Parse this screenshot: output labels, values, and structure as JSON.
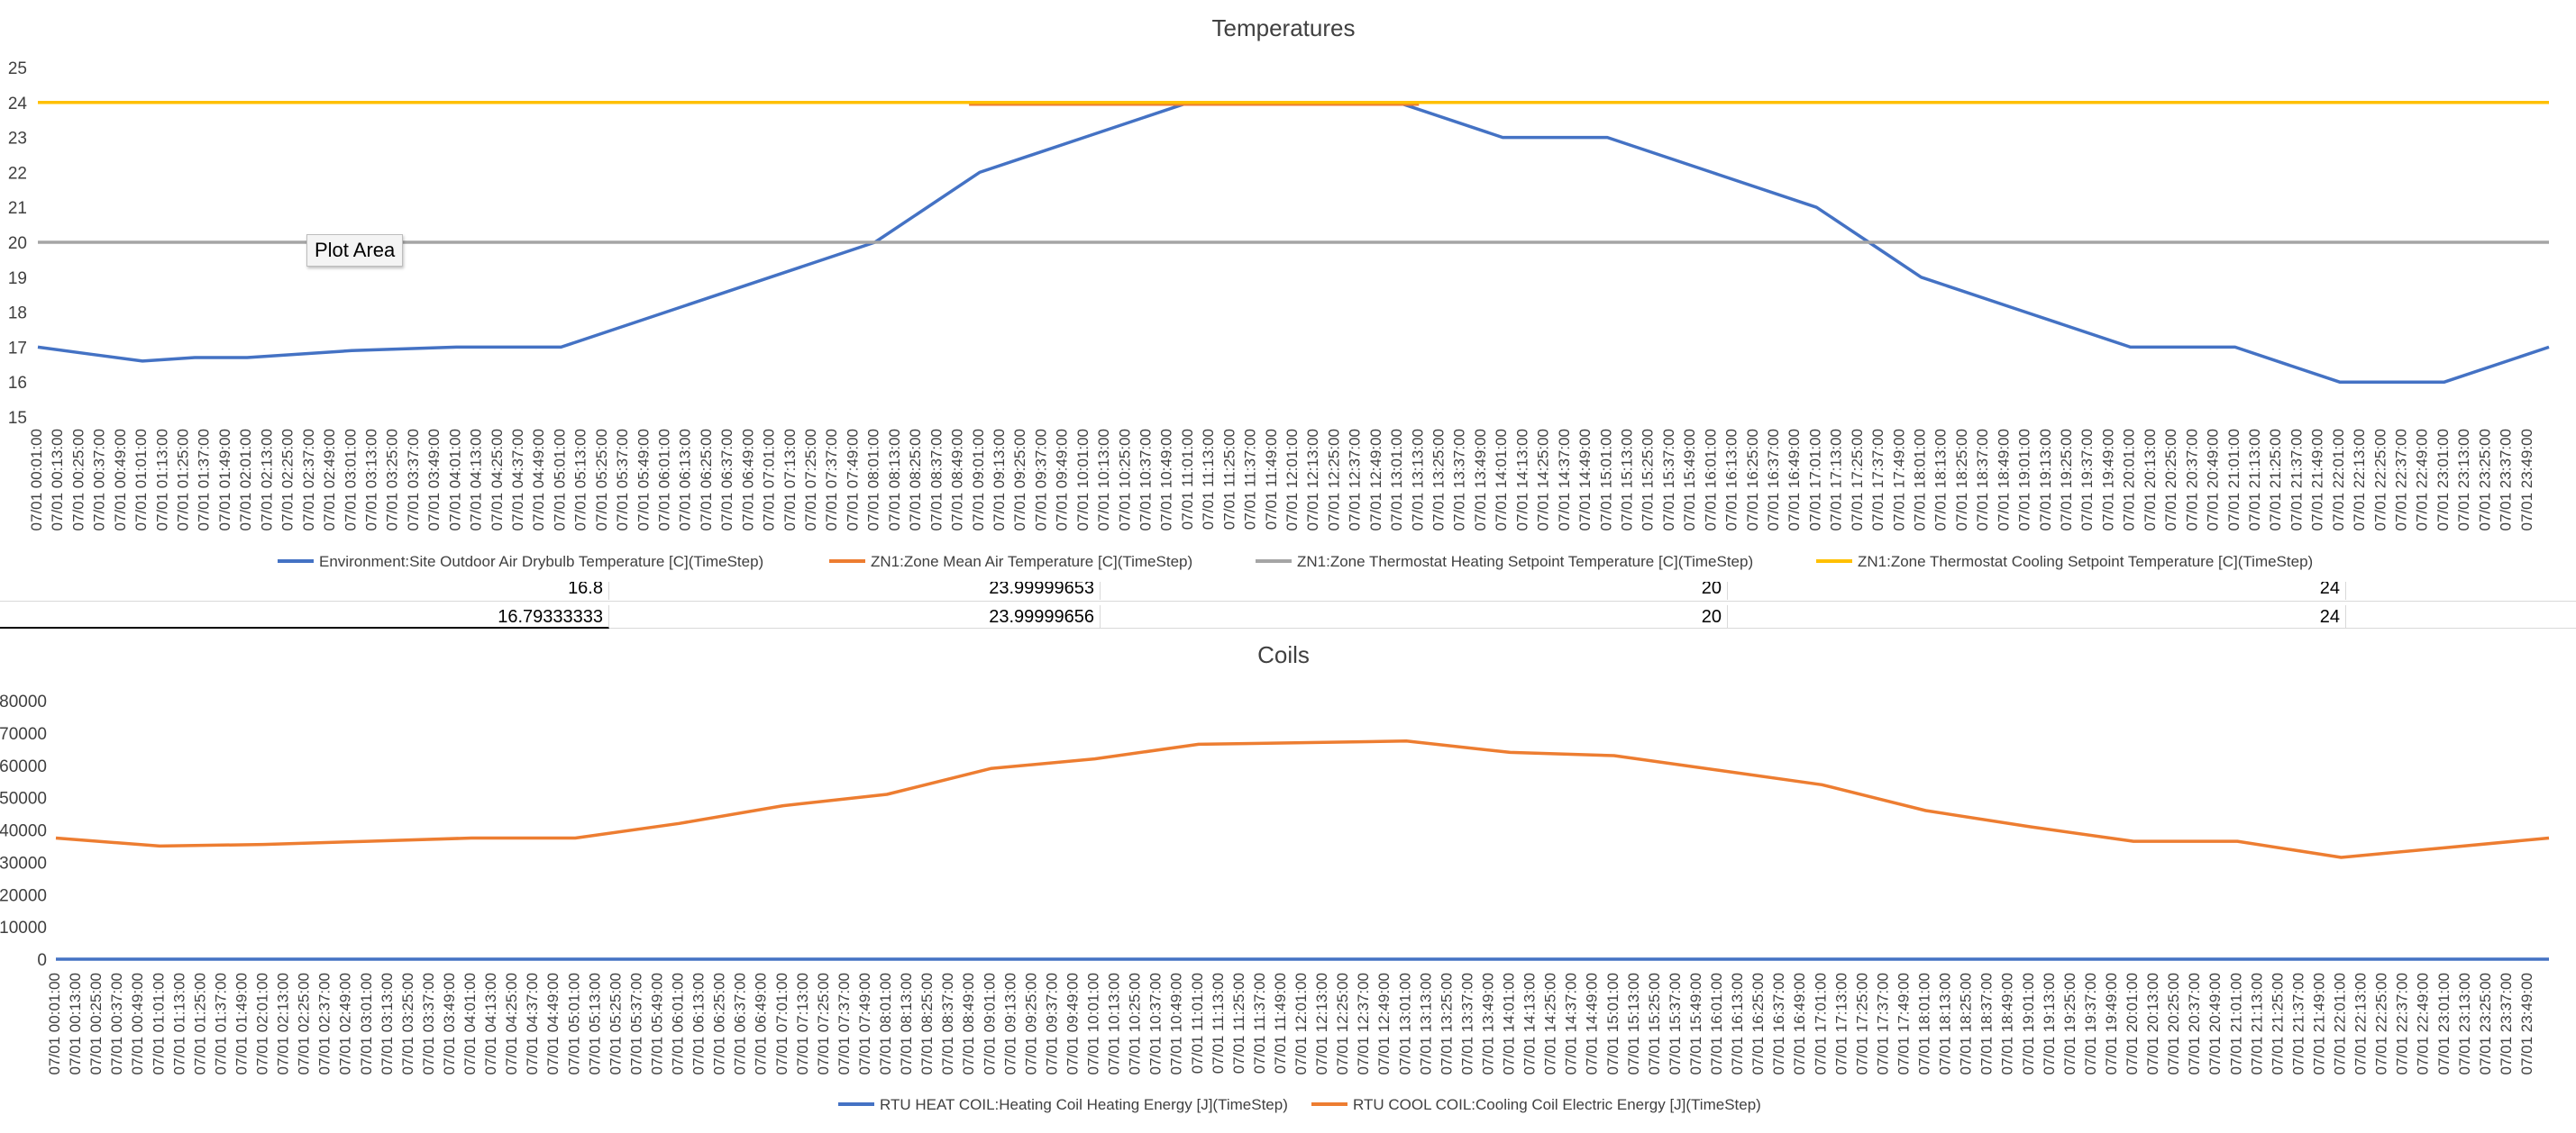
{
  "tooltip": {
    "label": "Plot Area"
  },
  "table_rows": [
    {
      "cells": [
        "16.8",
        "23.99999653",
        "20",
        "24"
      ]
    },
    {
      "cells": [
        "16.79333333",
        "23.99999656",
        "20",
        "24"
      ]
    }
  ],
  "chart_data": [
    {
      "type": "line",
      "title": "Temperatures",
      "ylim": [
        15,
        25
      ],
      "yticks": [
        15,
        16,
        17,
        18,
        19,
        20,
        21,
        22,
        23,
        24,
        25
      ],
      "grid": false,
      "legend_position": "bottom",
      "x_tick_labels_every_12_minutes": "07/01  00:01:00 … 07/01  23:49:00",
      "x_hours": [
        0,
        0.5,
        1,
        1.5,
        2,
        3,
        4,
        5,
        5.5,
        6,
        7,
        8,
        9,
        10,
        11,
        12,
        13,
        14,
        15,
        16,
        17,
        17.5,
        18,
        19,
        20,
        21,
        22,
        23,
        24
      ],
      "series": [
        {
          "name": "Environment:Site Outdoor Air Drybulb Temperature [C](TimeStep)",
          "color": "#4472C4",
          "values": [
            17,
            16.8,
            16.6,
            16.7,
            16.7,
            16.9,
            17,
            17,
            17.5,
            18,
            19,
            20,
            22,
            23,
            24,
            24,
            24,
            23,
            23,
            22,
            21,
            20,
            19,
            18,
            17,
            17,
            16,
            16,
            17
          ]
        },
        {
          "name": "ZN1:Zone Mean Air Temperature [C](TimeStep)",
          "color": "#ED7D31",
          "x_hours": [
            8.9,
            13.2
          ],
          "values": [
            23.95,
            23.95
          ]
        },
        {
          "name": "ZN1:Zone Thermostat Heating Setpoint Temperature [C](TimeStep)",
          "color": "#A5A5A5",
          "x_hours": [
            0,
            24
          ],
          "values": [
            20,
            20
          ]
        },
        {
          "name": "ZN1:Zone Thermostat Cooling Setpoint Temperature [C](TimeStep)",
          "color": "#FFC000",
          "x_hours": [
            0,
            24
          ],
          "values": [
            24,
            24
          ]
        }
      ]
    },
    {
      "type": "line",
      "title": "Coils",
      "ylim": [
        0,
        80000
      ],
      "yticks": [
        0,
        10000,
        20000,
        30000,
        40000,
        50000,
        60000,
        70000,
        80000
      ],
      "grid": false,
      "legend_position": "bottom",
      "x_tick_labels_every_12_minutes": "07/01  00:01:00 … 07/01  23:49:00",
      "x_hours": [
        0,
        1,
        2,
        3,
        4,
        5,
        6,
        7,
        8,
        9,
        10,
        11,
        12,
        13,
        14,
        15,
        16,
        17,
        18,
        19,
        20,
        21,
        22,
        23,
        24
      ],
      "series": [
        {
          "name": "RTU HEAT COIL:Heating Coil Heating Energy [J](TimeStep)",
          "color": "#4472C4",
          "values": [
            0,
            0,
            0,
            0,
            0,
            0,
            0,
            0,
            0,
            0,
            0,
            0,
            0,
            0,
            0,
            0,
            0,
            0,
            0,
            0,
            0,
            0,
            0,
            0,
            0
          ]
        },
        {
          "name": "RTU COOL COIL:Cooling Coil Electric Energy [J](TimeStep)",
          "color": "#ED7D31",
          "values": [
            37500,
            35000,
            35500,
            36500,
            37500,
            37500,
            42000,
            47500,
            51000,
            59000,
            62000,
            66500,
            67000,
            67500,
            64000,
            63000,
            58500,
            54000,
            46000,
            41000,
            36500,
            36500,
            31500,
            34500,
            37500
          ]
        }
      ]
    }
  ]
}
